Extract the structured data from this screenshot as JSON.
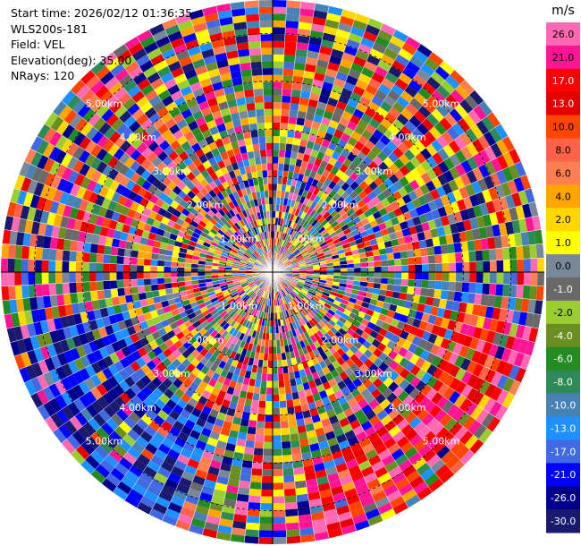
{
  "info": {
    "start_time": "Start time: 2026/02/12 01:36:35",
    "station": "WLS200s-181",
    "field": "Field: VEL",
    "elevation": "Elevation(deg): 35.00",
    "nrays": "NRays: 120"
  },
  "chart_data": {
    "type": "heatmap",
    "projection": "polar-ppi",
    "field": "VEL",
    "units": "m/s",
    "nrays": 120,
    "elevation_deg": 35.0,
    "range_rings_km": [
      1.0,
      2.0,
      3.0,
      4.0,
      5.0
    ],
    "range_labels": [
      "1.00km",
      "2.00km",
      "3.00km",
      "4.00km",
      "5.00km"
    ],
    "grid": true,
    "colorbar": {
      "title": "m/s",
      "ticks": [
        "26.0",
        "21.0",
        "17.0",
        "13.0",
        "10.0",
        "8.0",
        "6.0",
        "4.0",
        "2.0",
        "1.0",
        "0.0",
        "-1.0",
        "-2.0",
        "-4.0",
        "-6.0",
        "-8.0",
        "-10.0",
        "-13.0",
        "-17.0",
        "-21.0",
        "-26.0",
        "-30.0"
      ],
      "colors": [
        "#ff69b4",
        "#ff1493",
        "#ff0000",
        "#e60000",
        "#ff4500",
        "#ff6347",
        "#ff7f50",
        "#ffa500",
        "#ffd700",
        "#ffff00",
        "#778899",
        "#696969",
        "#9acd32",
        "#6b8e23",
        "#228b22",
        "#2e8b57",
        "#4682b4",
        "#1e90ff",
        "#4169e1",
        "#0000ff",
        "#00008b",
        "#191970"
      ]
    }
  }
}
